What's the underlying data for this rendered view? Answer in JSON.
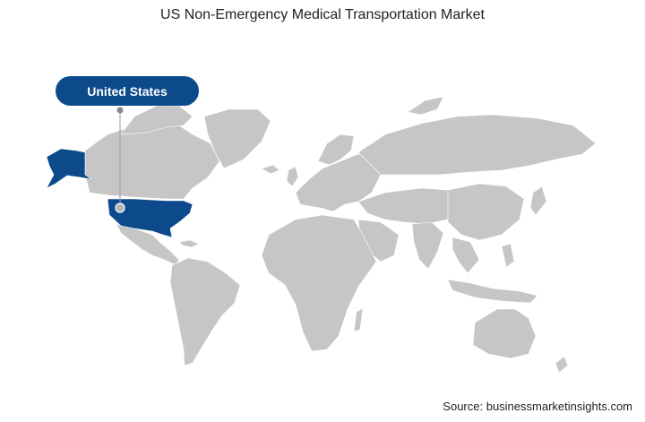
{
  "title": "US Non-Emergency Medical Transportation Market",
  "highlight": {
    "label": "United States",
    "color": "#0c4a8c"
  },
  "land_color": "#c6c6c6",
  "source": "Source: businessmarketinsights.com"
}
